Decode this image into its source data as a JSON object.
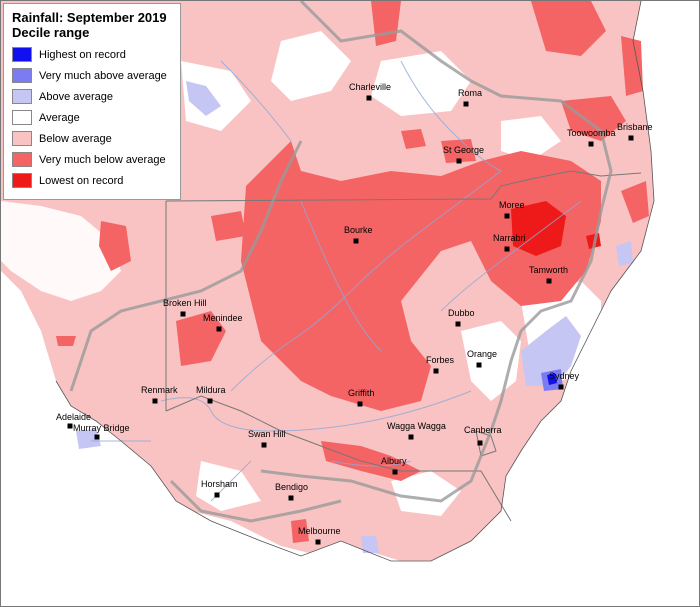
{
  "legend": {
    "title": "Rainfall: September 2019",
    "subtitle": "Decile range",
    "items": [
      {
        "label": "Highest on record",
        "color": "#1010f0"
      },
      {
        "label": "Very much above average",
        "color": "#7b7bf2"
      },
      {
        "label": "Above average",
        "color": "#c6c6f4"
      },
      {
        "label": "Average",
        "color": "#ffffff"
      },
      {
        "label": "Below average",
        "color": "#f9c3c3"
      },
      {
        "label": "Very much below average",
        "color": "#f46464"
      },
      {
        "label": "Lowest on record",
        "color": "#ee1a1a"
      }
    ]
  },
  "towns": [
    {
      "name": "Charleville"
    },
    {
      "name": "Roma"
    },
    {
      "name": "Toowoomba"
    },
    {
      "name": "Brisbane"
    },
    {
      "name": "St George"
    },
    {
      "name": "Moree"
    },
    {
      "name": "Narrabri"
    },
    {
      "name": "Bourke"
    },
    {
      "name": "Tamworth"
    },
    {
      "name": "Broken Hill"
    },
    {
      "name": "Menindee"
    },
    {
      "name": "Dubbo"
    },
    {
      "name": "Forbes"
    },
    {
      "name": "Orange"
    },
    {
      "name": "Sydney"
    },
    {
      "name": "Renmark"
    },
    {
      "name": "Mildura"
    },
    {
      "name": "Griffith"
    },
    {
      "name": "Adelaide"
    },
    {
      "name": "Murray Bridge"
    },
    {
      "name": "Swan Hill"
    },
    {
      "name": "Wagga Wagga"
    },
    {
      "name": "Canberra"
    },
    {
      "name": "Albury"
    },
    {
      "name": "Horsham"
    },
    {
      "name": "Bendigo"
    },
    {
      "name": "Melbourne"
    }
  ]
}
